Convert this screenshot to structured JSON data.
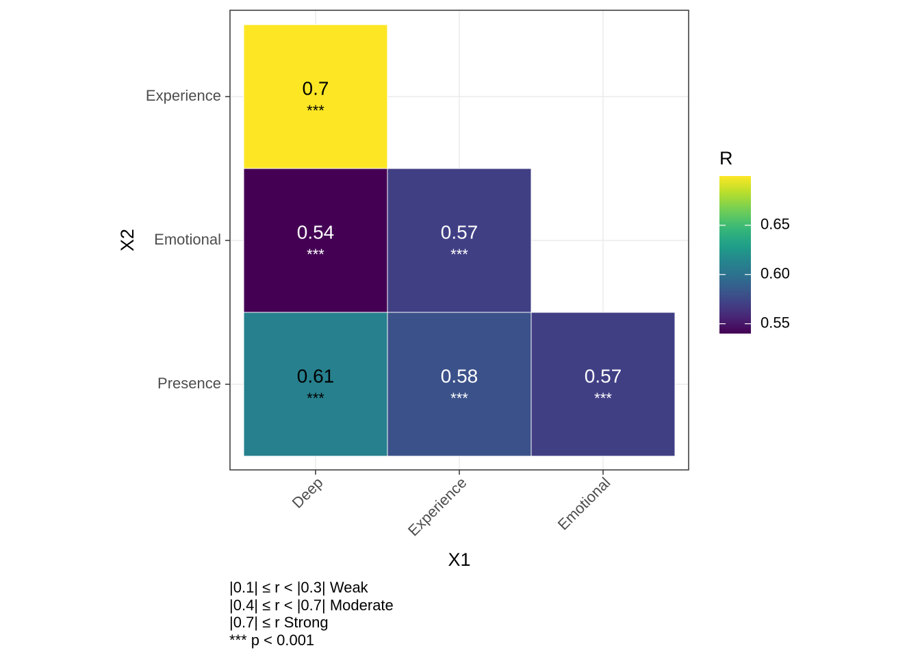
{
  "chart_data": {
    "type": "heatmap",
    "xlabel": "X1",
    "ylabel": "X2",
    "x_categories": [
      "Deep",
      "Experience",
      "Emotional"
    ],
    "y_categories": [
      "Presence",
      "Emotional",
      "Experience"
    ],
    "cells": [
      {
        "x": "Deep",
        "y": "Experience",
        "value": 0.7,
        "label": "0.7",
        "sig": "***"
      },
      {
        "x": "Deep",
        "y": "Emotional",
        "value": 0.54,
        "label": "0.54",
        "sig": "***"
      },
      {
        "x": "Experience",
        "y": "Emotional",
        "value": 0.57,
        "label": "0.57",
        "sig": "***"
      },
      {
        "x": "Deep",
        "y": "Presence",
        "value": 0.61,
        "label": "0.61",
        "sig": "***"
      },
      {
        "x": "Experience",
        "y": "Presence",
        "value": 0.58,
        "label": "0.58",
        "sig": "***"
      },
      {
        "x": "Emotional",
        "y": "Presence",
        "value": 0.57,
        "label": "0.57",
        "sig": "***"
      }
    ],
    "legend": {
      "title": "R",
      "min": 0.54,
      "max": 0.7,
      "ticks": [
        0.55,
        0.6,
        0.65
      ],
      "tick_labels": [
        "0.55",
        "0.60",
        "0.65"
      ],
      "colormap": "viridis",
      "placement": "right"
    },
    "grid": true
  },
  "caption": [
    "|0.1| ≤ r < |0.3| Weak",
    "|0.4| ≤ r < |0.7| Moderate",
    "|0.7| ≤ r Strong",
    "*** p < 0.001"
  ]
}
